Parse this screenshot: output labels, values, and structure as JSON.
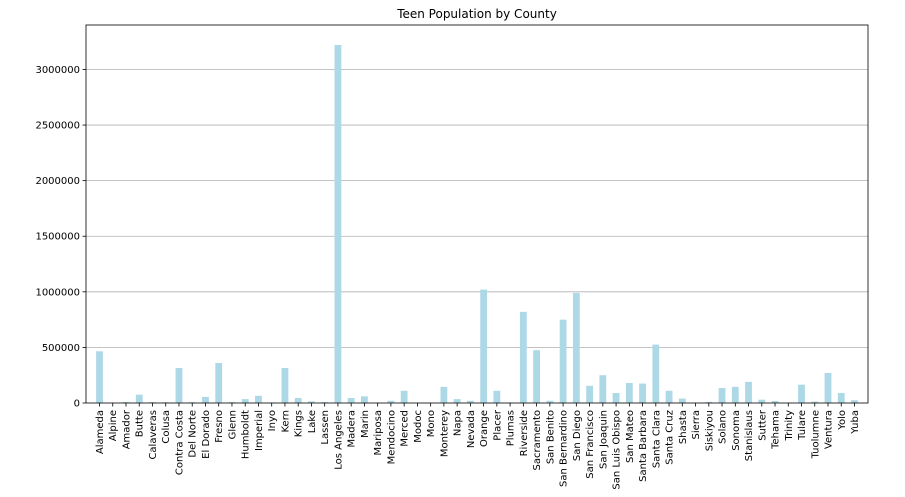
{
  "chart_data": {
    "type": "bar",
    "title": "Teen Population by County",
    "xlabel": "",
    "ylabel": "",
    "ylim": [
      0,
      3400000
    ],
    "yticks": [
      0,
      500000,
      1000000,
      1500000,
      2000000,
      2500000,
      3000000
    ],
    "ytick_labels": [
      "0",
      "500000",
      "1000000",
      "1500000",
      "2000000",
      "2500000",
      "3000000"
    ],
    "grid": "horizontal",
    "bar_color": "#add8e6",
    "categories": [
      "Alameda",
      "Alpine",
      "Amador",
      "Butte",
      "Calaveras",
      "Colusa",
      "Contra Costa",
      "Del Norte",
      "El Dorado",
      "Fresno",
      "Glenn",
      "Humboldt",
      "Imperial",
      "Inyo",
      "Kern",
      "Kings",
      "Lake",
      "Lassen",
      "Los Angeles",
      "Madera",
      "Marin",
      "Mariposa",
      "Mendocino",
      "Merced",
      "Modoc",
      "Mono",
      "Monterey",
      "Napa",
      "Nevada",
      "Orange",
      "Placer",
      "Plumas",
      "Riverside",
      "Sacramento",
      "San Benito",
      "San Bernardino",
      "San Diego",
      "San Francisco",
      "San Joaquin",
      "San Luis Obispo",
      "San Mateo",
      "Santa Barbara",
      "Santa Clara",
      "Santa Cruz",
      "Shasta",
      "Sierra",
      "Siskiyou",
      "Solano",
      "Sonoma",
      "Stanislaus",
      "Sutter",
      "Tehama",
      "Trinity",
      "Tulare",
      "Tuolumne",
      "Ventura",
      "Yolo",
      "Yuba"
    ],
    "values": [
      465000,
      500,
      9000,
      75000,
      8000,
      7000,
      315000,
      7000,
      55000,
      360000,
      8000,
      35000,
      65000,
      5000,
      315000,
      45000,
      15000,
      8000,
      3220000,
      45000,
      60000,
      4000,
      20000,
      110000,
      2000,
      3000,
      145000,
      35000,
      20000,
      1020000,
      110000,
      5000,
      820000,
      475000,
      20000,
      750000,
      990000,
      155000,
      250000,
      90000,
      180000,
      175000,
      525000,
      110000,
      40000,
      800,
      10000,
      135000,
      145000,
      190000,
      30000,
      18000,
      3000,
      165000,
      12000,
      270000,
      90000,
      25000
    ]
  }
}
